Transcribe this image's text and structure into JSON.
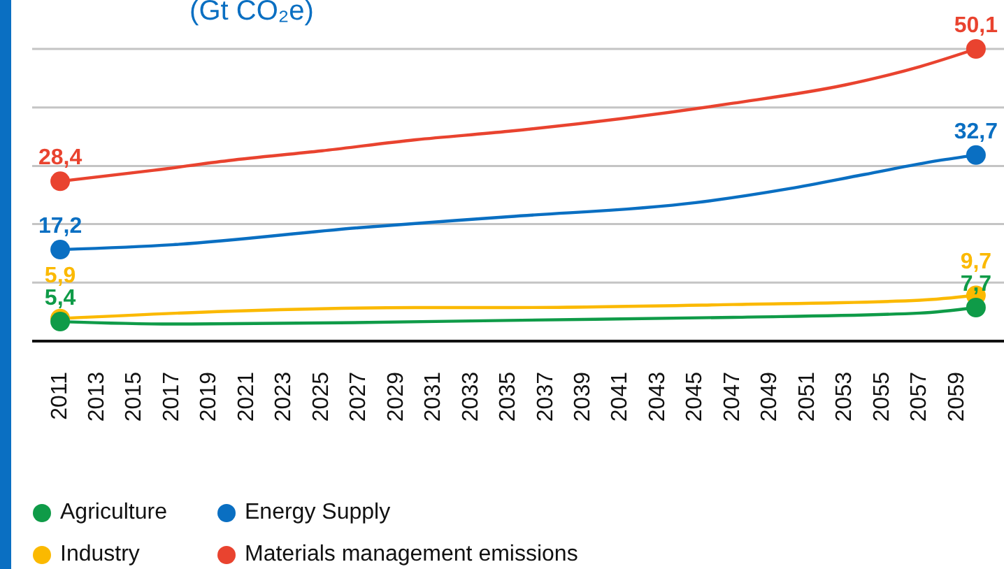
{
  "chart_data": {
    "type": "line",
    "title": "(Gt CO₂e)",
    "series": [
      {
        "name": "Agriculture",
        "color": "#0f9b48",
        "x": [
          2011,
          2017,
          2026,
          2035,
          2047,
          2057,
          2060
        ],
        "values": [
          5.4,
          5.0,
          5.2,
          5.6,
          6.1,
          6.8,
          7.7
        ],
        "value_labels": [
          "5,4",
          null,
          null,
          null,
          null,
          null,
          "7,7"
        ]
      },
      {
        "name": "Energy Supply",
        "color": "#0a6fc2",
        "x": [
          2011,
          2017,
          2027,
          2035,
          2045,
          2050,
          2054,
          2058,
          2060
        ],
        "values": [
          17.2,
          18.0,
          20.8,
          22.6,
          24.9,
          27.2,
          29.5,
          31.8,
          32.7
        ],
        "value_labels": [
          "17,2",
          null,
          null,
          null,
          null,
          null,
          null,
          null,
          "32,7"
        ]
      },
      {
        "name": "Industry",
        "color": "#fbb900",
        "x": [
          2011,
          2020,
          2030,
          2035,
          2047,
          2057,
          2060
        ],
        "values": [
          5.9,
          7.1,
          7.7,
          7.7,
          8.2,
          8.9,
          9.7
        ],
        "value_labels": [
          "5,9",
          null,
          null,
          null,
          null,
          null,
          "9,7"
        ]
      },
      {
        "name": "Materials management emissions",
        "color": "#e9432f",
        "x": [
          2011,
          2016,
          2020,
          2025,
          2030,
          2035,
          2047,
          2053,
          2057,
          2060
        ],
        "values": [
          28.4,
          30.2,
          31.8,
          33.4,
          35.2,
          36.6,
          41.2,
          44.2,
          47.2,
          50.1
        ],
        "value_labels": [
          "28,4",
          null,
          null,
          null,
          null,
          null,
          null,
          null,
          null,
          "50,1"
        ]
      }
    ],
    "xlim": [
      2009.5,
      2061.5
    ],
    "xticks": [
      2011,
      2013,
      2015,
      2017,
      2019,
      2021,
      2023,
      2025,
      2027,
      2029,
      2031,
      2033,
      2035,
      2037,
      2039,
      2041,
      2043,
      2045,
      2047,
      2049,
      2051,
      2053,
      2055,
      2057,
      2059
    ],
    "ylim": [
      2.2,
      50.1
    ],
    "yticks": [
      {
        "value": 2.2,
        "label": null
      },
      {
        "value": 11.8,
        "label": null
      },
      {
        "value": 21.4,
        "label": null
      },
      {
        "value": 30.9,
        "label": null
      },
      {
        "value": 40.5,
        "label": null
      },
      {
        "value": 50.1,
        "label": null
      }
    ],
    "tick_labels": "x",
    "grid": "y",
    "legend": "bottom left",
    "line_style": "solid"
  }
}
